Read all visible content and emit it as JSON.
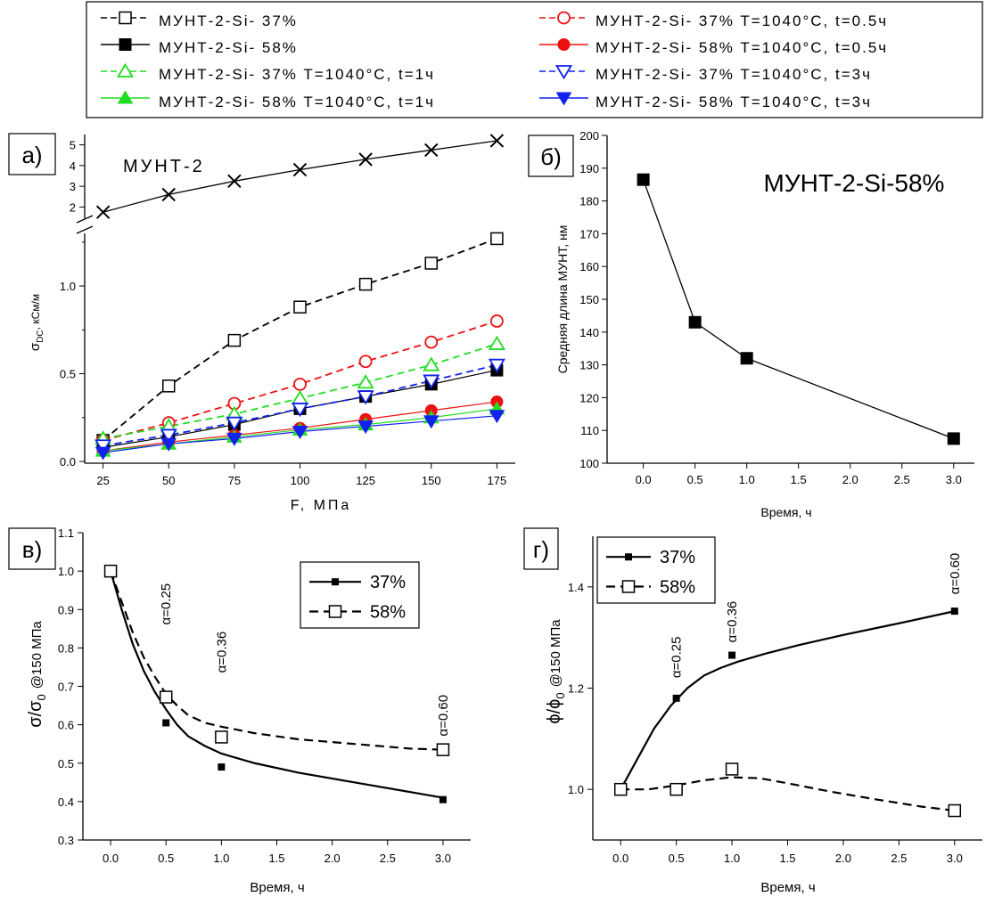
{
  "legend_top": [
    {
      "text": "МУНТ-2-Si- 37%",
      "color": "#000000",
      "dash": true,
      "marker": "square-open"
    },
    {
      "text": "МУНТ-2-Si- 58%",
      "color": "#000000",
      "dash": false,
      "marker": "square-filled"
    },
    {
      "text": "МУНТ-2-Si- 37% T=1040°C, t=1ч",
      "color": "#22dd22",
      "dash": true,
      "marker": "triangle-open"
    },
    {
      "text": "МУНТ-2-Si- 58% T=1040°C, t=1ч",
      "color": "#22dd22",
      "dash": false,
      "marker": "triangle-filled"
    },
    {
      "text": "МУНТ-2-Si- 37% T=1040°C, t=0.5ч",
      "color": "#ee1111",
      "dash": true,
      "marker": "circle-open"
    },
    {
      "text": "МУНТ-2-Si- 58% T=1040°C, t=0.5ч",
      "color": "#ee1111",
      "dash": false,
      "marker": "circle-filled"
    },
    {
      "text": "МУНТ-2-Si- 37% T=1040°C, t=3ч",
      "color": "#1122ee",
      "dash": true,
      "marker": "tri-down-open"
    },
    {
      "text": "МУНТ-2-Si- 58% T=1040°C, t=3ч",
      "color": "#1122ee",
      "dash": false,
      "marker": "tri-down-filled"
    }
  ],
  "chart_data": [
    {
      "panel_label": "а)",
      "type": "line",
      "annotation": "МУНТ-2",
      "xlabel": "F, МПа",
      "ylabel_main": "σ",
      "ylabel_sub": "DC",
      "ylabel_unit": ", кСм/м",
      "x": [
        25,
        50,
        75,
        100,
        125,
        150,
        175
      ],
      "xticks": [
        "25",
        "50",
        "75",
        "100",
        "125",
        "150",
        "175"
      ],
      "xlim": [
        18,
        182
      ],
      "ylim": [
        0,
        1.3
      ],
      "yticks": [
        "0.0",
        "0.5",
        "1.0"
      ],
      "ylim_upper": [
        1.5,
        5.5
      ],
      "yticks_upper": [
        "2",
        "3",
        "4",
        "5"
      ],
      "axis_break": true,
      "upper_series": {
        "name": "МУНТ-2",
        "values": [
          1.75,
          2.6,
          3.25,
          3.8,
          4.3,
          4.75,
          5.2
        ],
        "color": "#000000",
        "marker": "x"
      },
      "series": [
        {
          "name": "МУНТ-2-Si- 37%",
          "values": [
            0.12,
            0.43,
            0.69,
            0.88,
            1.01,
            1.13,
            1.27
          ],
          "color": "#000000",
          "dash": true,
          "marker": "square-open"
        },
        {
          "name": "МУНТ-2-Si- 58%",
          "values": [
            0.08,
            0.14,
            0.21,
            0.3,
            0.37,
            0.44,
            0.52
          ],
          "color": "#000000",
          "dash": false,
          "marker": "square-filled"
        },
        {
          "name": "МУНТ-2-Si- 37% T=1040°C, t=0.5ч",
          "values": [
            0.12,
            0.22,
            0.33,
            0.44,
            0.57,
            0.68,
            0.8
          ],
          "color": "#ee1111",
          "dash": true,
          "marker": "circle-open"
        },
        {
          "name": "МУНТ-2-Si- 58% T=1040°C, t=0.5ч",
          "values": [
            0.06,
            0.11,
            0.15,
            0.19,
            0.24,
            0.29,
            0.34
          ],
          "color": "#ee1111",
          "dash": false,
          "marker": "circle-filled"
        },
        {
          "name": "МУНТ-2-Si- 37% T=1040°C, t=1ч",
          "values": [
            0.13,
            0.2,
            0.27,
            0.36,
            0.45,
            0.55,
            0.67
          ],
          "color": "#22dd22",
          "dash": true,
          "marker": "triangle-open"
        },
        {
          "name": "МУНТ-2-Si- 58% T=1040°C, t=1ч",
          "values": [
            0.06,
            0.1,
            0.14,
            0.18,
            0.21,
            0.25,
            0.3
          ],
          "color": "#22dd22",
          "dash": false,
          "marker": "triangle-filled"
        },
        {
          "name": "МУНТ-2-Si- 37% T=1040°C, t=3ч",
          "values": [
            0.09,
            0.15,
            0.22,
            0.3,
            0.37,
            0.46,
            0.55
          ],
          "color": "#1122ee",
          "dash": true,
          "marker": "tri-down-open"
        },
        {
          "name": "МУНТ-2-Si- 58% T=1040°C, t=3ч",
          "values": [
            0.05,
            0.1,
            0.13,
            0.17,
            0.2,
            0.23,
            0.26
          ],
          "color": "#1122ee",
          "dash": false,
          "marker": "tri-down-filled"
        }
      ]
    },
    {
      "panel_label": "б)",
      "type": "line",
      "annotation": "МУНТ-2-Si-58%",
      "xlabel": "Время, ч",
      "ylabel": "Средняя длина МУНТ, нм",
      "x": [
        0,
        0.5,
        1.0,
        3.0
      ],
      "xticks": [
        "0.0",
        "0.5",
        "1.0",
        "1.5",
        "2.0",
        "2.5",
        "3.0"
      ],
      "xtick_values": [
        0,
        0.5,
        1.0,
        1.5,
        2.0,
        2.5,
        3.0
      ],
      "xlim": [
        -0.35,
        3.2
      ],
      "ylim": [
        100,
        200
      ],
      "yticks": [
        "100",
        "110",
        "120",
        "130",
        "140",
        "150",
        "160",
        "170",
        "180",
        "190",
        "200"
      ],
      "series": [
        {
          "name": "",
          "values": [
            186.5,
            143,
            132,
            107.5
          ],
          "color": "#000000",
          "dash": false,
          "marker": "square-filled"
        }
      ]
    },
    {
      "panel_label": "в)",
      "type": "scatter",
      "xlabel": "Время, ч",
      "ylabel_main": "σ/σ",
      "ylabel_sub": "0",
      "ylabel_suffix": "@150 МПа",
      "x": [
        0,
        0.5,
        1.0,
        3.0
      ],
      "xticks": [
        "0.0",
        "0.5",
        "1.0",
        "1.5",
        "2.0",
        "2.5",
        "3.0"
      ],
      "xtick_values": [
        0,
        0.5,
        1.0,
        1.5,
        2.0,
        2.5,
        3.0
      ],
      "xlim": [
        -0.25,
        3.25
      ],
      "ylim": [
        0.3,
        1.1
      ],
      "yticks": [
        "0.3",
        "0.4",
        "0.5",
        "0.6",
        "0.7",
        "0.8",
        "0.9",
        "1.0",
        "1.1"
      ],
      "annotations": [
        {
          "text": "α=0.25",
          "x": 0.5,
          "y": 0.86
        },
        {
          "text": "α=0.36",
          "x": 1.0,
          "y": 0.735
        },
        {
          "text": "α=0.60",
          "x": 3.0,
          "y": 0.57
        }
      ],
      "series": [
        {
          "name": "37%",
          "values": [
            1.0,
            0.605,
            0.49,
            0.405
          ],
          "color": "#000000",
          "dash": false,
          "marker": "square-filled-small",
          "fit": [
            [
              0,
              1.0
            ],
            [
              0.1,
              0.9
            ],
            [
              0.2,
              0.81
            ],
            [
              0.3,
              0.74
            ],
            [
              0.4,
              0.685
            ],
            [
              0.5,
              0.64
            ],
            [
              0.6,
              0.6
            ],
            [
              0.7,
              0.57
            ],
            [
              0.85,
              0.545
            ],
            [
              1.0,
              0.525
            ],
            [
              1.3,
              0.5
            ],
            [
              1.7,
              0.475
            ],
            [
              2.2,
              0.45
            ],
            [
              2.7,
              0.425
            ],
            [
              3.0,
              0.41
            ]
          ]
        },
        {
          "name": "58%",
          "values": [
            1.0,
            0.672,
            0.568,
            0.535
          ],
          "color": "#000000",
          "dash": true,
          "marker": "square-open",
          "fit": [
            [
              0,
              1.0
            ],
            [
              0.1,
              0.92
            ],
            [
              0.2,
              0.84
            ],
            [
              0.3,
              0.775
            ],
            [
              0.4,
              0.725
            ],
            [
              0.5,
              0.68
            ],
            [
              0.6,
              0.65
            ],
            [
              0.7,
              0.625
            ],
            [
              0.85,
              0.605
            ],
            [
              1.0,
              0.595
            ],
            [
              1.3,
              0.578
            ],
            [
              1.7,
              0.562
            ],
            [
              2.2,
              0.55
            ],
            [
              2.7,
              0.538
            ],
            [
              3.0,
              0.535
            ]
          ]
        }
      ],
      "legend": [
        "37%",
        "58%"
      ]
    },
    {
      "panel_label": "г)",
      "type": "scatter",
      "xlabel": "Время, ч",
      "ylabel_main": "ϕ/ϕ",
      "ylabel_sub": "0",
      "ylabel_suffix": "@150 МПа",
      "x": [
        0,
        0.5,
        1.0,
        3.0
      ],
      "xticks": [
        "0.0",
        "0.5",
        "1.0",
        "1.5",
        "2.0",
        "2.5",
        "3.0"
      ],
      "xtick_values": [
        0,
        0.5,
        1.0,
        1.5,
        2.0,
        2.5,
        3.0
      ],
      "xlim": [
        -0.25,
        3.25
      ],
      "ylim": [
        0.9,
        1.5
      ],
      "yticks": [
        "1.0",
        "1.2",
        "1.4"
      ],
      "annotations": [
        {
          "text": "α=0.25",
          "x": 0.5,
          "y": 1.22
        },
        {
          "text": "α=0.36",
          "x": 1.0,
          "y": 1.29
        },
        {
          "text": "α=0.60",
          "x": 3.0,
          "y": 1.385
        }
      ],
      "series": [
        {
          "name": "37%",
          "values": [
            1.0,
            1.18,
            1.265,
            1.352
          ],
          "color": "#000000",
          "dash": false,
          "marker": "square-filled-small",
          "fit": [
            [
              0,
              1.0
            ],
            [
              0.15,
              1.06
            ],
            [
              0.3,
              1.12
            ],
            [
              0.45,
              1.165
            ],
            [
              0.6,
              1.2
            ],
            [
              0.75,
              1.225
            ],
            [
              0.9,
              1.24
            ],
            [
              1.05,
              1.252
            ],
            [
              1.3,
              1.268
            ],
            [
              1.6,
              1.285
            ],
            [
              2.0,
              1.305
            ],
            [
              2.5,
              1.328
            ],
            [
              3.0,
              1.352
            ]
          ]
        },
        {
          "name": "58%",
          "values": [
            1.0,
            1.0,
            1.04,
            0.958
          ],
          "color": "#000000",
          "dash": true,
          "marker": "square-open",
          "fit": [
            [
              0,
              1.0
            ],
            [
              0.25,
              1.0
            ],
            [
              0.5,
              1.008
            ],
            [
              0.75,
              1.018
            ],
            [
              1.0,
              1.024
            ],
            [
              1.25,
              1.022
            ],
            [
              1.5,
              1.012
            ],
            [
              1.9,
              0.995
            ],
            [
              2.3,
              0.98
            ],
            [
              2.7,
              0.966
            ],
            [
              3.0,
              0.958
            ]
          ]
        }
      ],
      "legend": [
        "37%",
        "58%"
      ]
    }
  ]
}
